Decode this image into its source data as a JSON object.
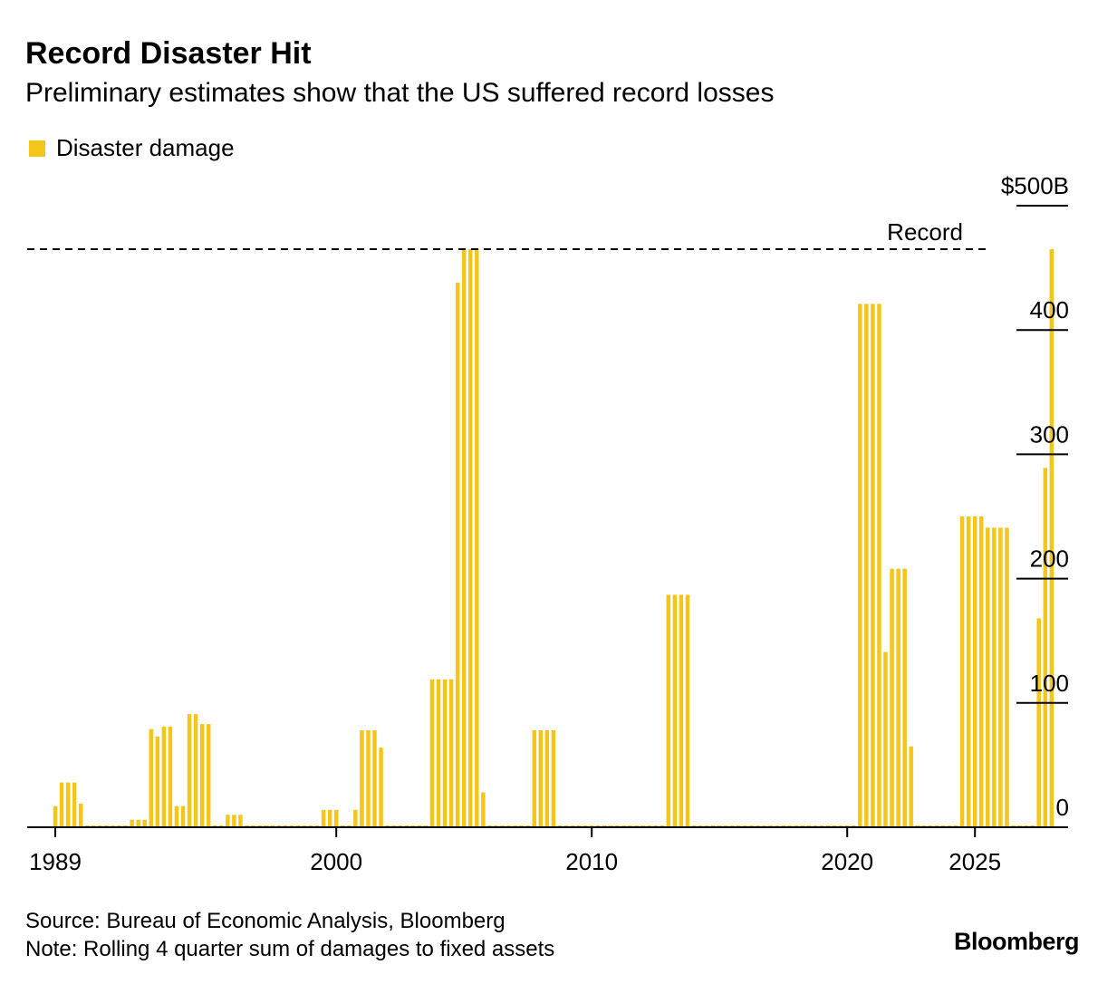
{
  "header": {
    "title": "Record Disaster Hit",
    "subtitle": "Preliminary estimates show that the US suffered record losses"
  },
  "legend": {
    "label": "Disaster damage",
    "color": "#f5c518"
  },
  "footer": {
    "source": "Source: Bureau of Economic Analysis, Bloomberg",
    "note": "Note: Rolling 4 quarter sum of damages to fixed assets",
    "brand": "Bloomberg"
  },
  "chart_data": {
    "type": "bar",
    "title": "Record Disaster Hit",
    "subtitle": "Preliminary estimates show that the US suffered record losses",
    "xlabel": "",
    "ylabel": "",
    "ylim": [
      0,
      500
    ],
    "y_unit": "$B",
    "yticks": [
      {
        "value": 500,
        "label": "$500B"
      },
      {
        "value": 400,
        "label": "400"
      },
      {
        "value": 300,
        "label": "300"
      },
      {
        "value": 200,
        "label": "200"
      },
      {
        "value": 100,
        "label": "100"
      },
      {
        "value": 0,
        "label": "0"
      }
    ],
    "xticks": [
      {
        "value": 1989,
        "label": "1989"
      },
      {
        "value": 2000,
        "label": "2000"
      },
      {
        "value": 2010,
        "label": "2010"
      },
      {
        "value": 2020,
        "label": "2020"
      },
      {
        "value": 2025,
        "label": "2025"
      }
    ],
    "grid": false,
    "legend_position": "top-left",
    "reference_line": {
      "value": 465,
      "label": "Record",
      "style": "dashed"
    },
    "series": [
      {
        "name": "Disaster damage",
        "color": "#f5c518",
        "start_year": 1989,
        "frequency": "quarterly",
        "values": [
          17,
          36,
          36,
          36,
          19,
          0,
          0,
          0,
          0,
          0,
          0,
          0,
          6,
          6,
          6,
          79,
          73,
          81,
          81,
          17,
          17,
          91,
          91,
          83,
          83,
          0,
          0,
          10,
          10,
          10,
          0,
          0,
          0,
          0,
          0,
          0,
          0,
          0,
          0,
          0,
          0,
          0,
          14,
          14,
          14,
          0,
          0,
          14,
          78,
          78,
          78,
          64,
          0,
          0,
          0,
          0,
          0,
          0,
          0,
          119,
          119,
          119,
          119,
          438,
          465,
          465,
          465,
          28,
          0,
          0,
          0,
          0,
          0,
          0,
          0,
          78,
          78,
          78,
          78,
          0,
          0,
          0,
          0,
          0,
          0,
          0,
          0,
          0,
          0,
          0,
          0,
          0,
          0,
          0,
          0,
          0,
          187,
          187,
          187,
          187,
          0,
          0,
          0,
          0,
          0,
          0,
          0,
          0,
          0,
          0,
          0,
          0,
          0,
          0,
          0,
          0,
          0,
          0,
          0,
          0,
          0,
          0,
          0,
          0,
          0,
          0,
          421,
          421,
          421,
          421,
          141,
          208,
          208,
          208,
          65,
          0,
          0,
          0,
          0,
          0,
          0,
          0,
          250,
          250,
          250,
          250,
          241,
          241,
          241,
          241,
          0,
          0,
          0,
          0,
          168,
          289,
          465
        ]
      }
    ]
  }
}
